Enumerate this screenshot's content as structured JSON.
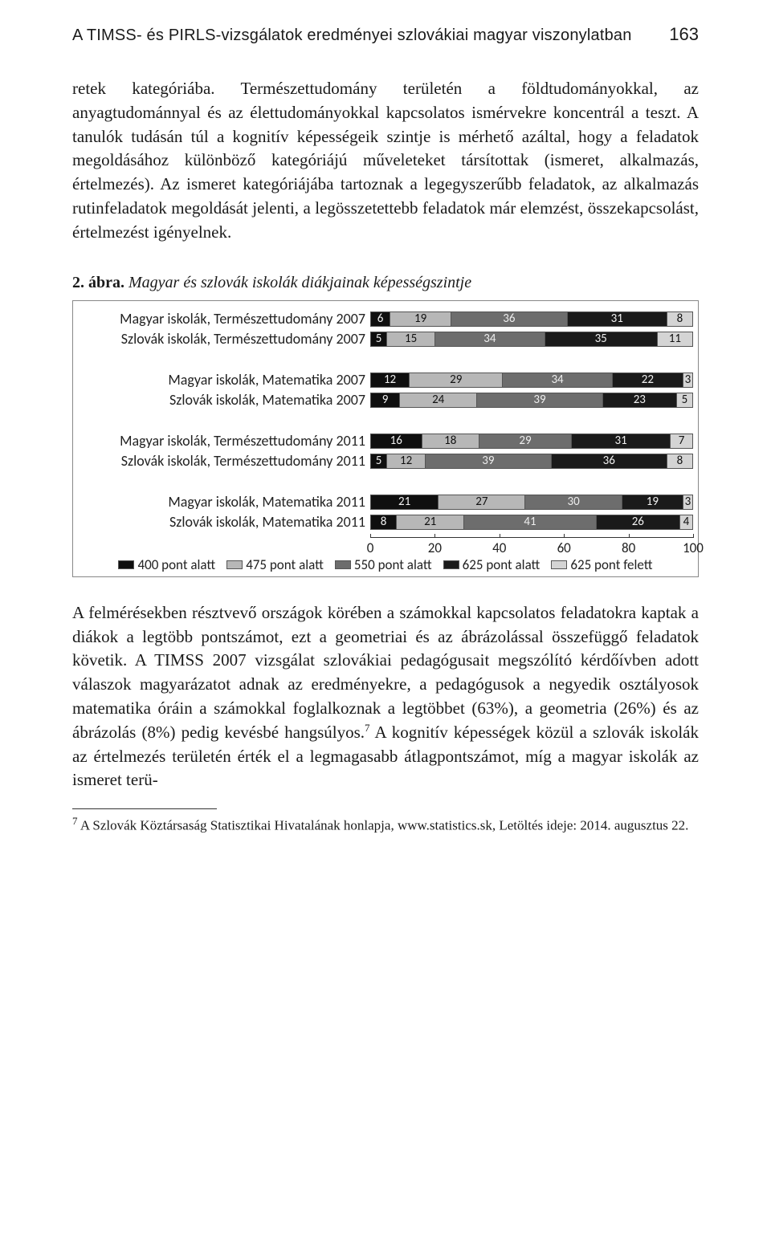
{
  "page": {
    "running_head": "A TIMSS- és PIRLS-vizsgálatok eredményei szlovákiai magyar viszonylatban",
    "number": "163"
  },
  "paragraph1": "retek kategóriába. Természettudomány területén a földtudományokkal, az anyagtudománnyal és az élettudományokkal kapcsolatos ismérvekre koncentrál a teszt. A tanulók tudásán túl a kognitív képességeik szintje is mérhető azáltal, hogy a feladatok megoldásához különböző kategóriájú műveleteket társítottak (ismeret, alkalmazás, értelmezés). Az ismeret kategóriájába tartoznak a legegyszerűbb feladatok, az alkalmazás rutinfeladatok megoldását jelenti, a legösszetettebb feladatok már elemzést, összekapcsolást, értelmezést igényelnek.",
  "figure": {
    "number": "2. ábra.",
    "title": "Magyar és szlovák iskolák diákjainak képességszintje",
    "legend": [
      {
        "label": "400 pont alatt",
        "color": "#0f0f0f"
      },
      {
        "label": "475 pont alatt",
        "color": "#b7b7b7"
      },
      {
        "label": "550 pont alatt",
        "color": "#6d6d6d"
      },
      {
        "label": "625 pont alatt",
        "color": "#1a1a1a"
      },
      {
        "label": "625 pont felett",
        "color": "#d4d4d4"
      }
    ],
    "axis": {
      "min": 0,
      "max": 100,
      "step": 20
    },
    "pairs": [
      {
        "rows": [
          {
            "label": "Magyar iskolák, Természettudomány 2007",
            "segments": [
              6,
              19,
              36,
              31,
              8
            ]
          },
          {
            "label": "Szlovák iskolák, Természettudomány 2007",
            "segments": [
              5,
              15,
              34,
              35,
              11
            ]
          }
        ]
      },
      {
        "rows": [
          {
            "label": "Magyar iskolák, Matematika 2007",
            "segments": [
              12,
              29,
              34,
              22,
              3
            ]
          },
          {
            "label": "Szlovák iskolák, Matematika 2007",
            "segments": [
              9,
              24,
              39,
              23,
              5
            ]
          }
        ]
      },
      {
        "rows": [
          {
            "label": "Magyar iskolák, Természettudomány 2011",
            "segments": [
              16,
              18,
              29,
              31,
              7
            ]
          },
          {
            "label": "Szlovák iskolák, Természettudomány 2011",
            "segments": [
              5,
              12,
              39,
              36,
              8
            ]
          }
        ]
      },
      {
        "rows": [
          {
            "label": "Magyar iskolák, Matematika 2011",
            "segments": [
              21,
              27,
              30,
              19,
              3
            ]
          },
          {
            "label": "Szlovák iskolák, Matematika 2011",
            "segments": [
              8,
              21,
              41,
              26,
              4
            ]
          }
        ]
      }
    ]
  },
  "paragraph2_html": "A felmérésekben résztvevő országok körében a számokkal kapcsolatos feladatokra kaptak a diákok a legtöbb pontszámot, ezt a geometriai és az ábrázolással összefüggő feladatok követik. A TIMSS 2007 vizsgálat szlovákiai pedagógusait megszólító kérdőívben adott válaszok magyarázatot adnak az eredményekre, a pedagógusok a negyedik osztályosok matematika óráin a számokkal foglalkoznak a legtöbbet (63%), a geometria (26%) és az ábrázolás (8%) pedig kevésbé hangsúlyos.<span class=\"footnote-sup\">7</span> A kognitív képességek közül a szlovák iskolák az értelmezés területén érték el a legmagasabb átlagpontszámot, míg a magyar iskolák az ismeret terü-",
  "footnote": {
    "marker": "7",
    "text": "A Szlovák Köztársaság Statisztikai Hivatalának honlapja, www.statistics.sk, Letöltés ideje: 2014. augusztus 22."
  }
}
